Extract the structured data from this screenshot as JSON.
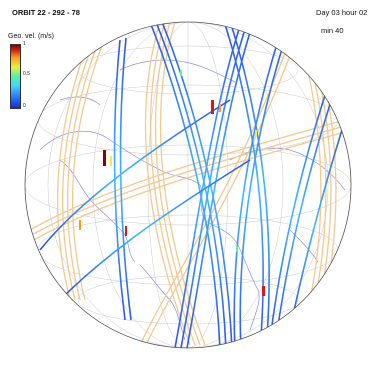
{
  "header": {
    "title": "ORBIT 22 - 292 - 78",
    "time_day_hour": "Day 03  hour 02",
    "time_min": "min 40"
  },
  "colorbar": {
    "label": "Geo. vel. (m/s)",
    "ticks": [
      "1",
      "0.5",
      "0"
    ],
    "colormap": "jet",
    "range": [
      0,
      1
    ]
  },
  "map": {
    "projection": "orthographic",
    "grid": true,
    "coastline_color": "#8a90e8",
    "inactive_track_color": "#f5c890",
    "active_track_color": "#3a6cf0"
  }
}
